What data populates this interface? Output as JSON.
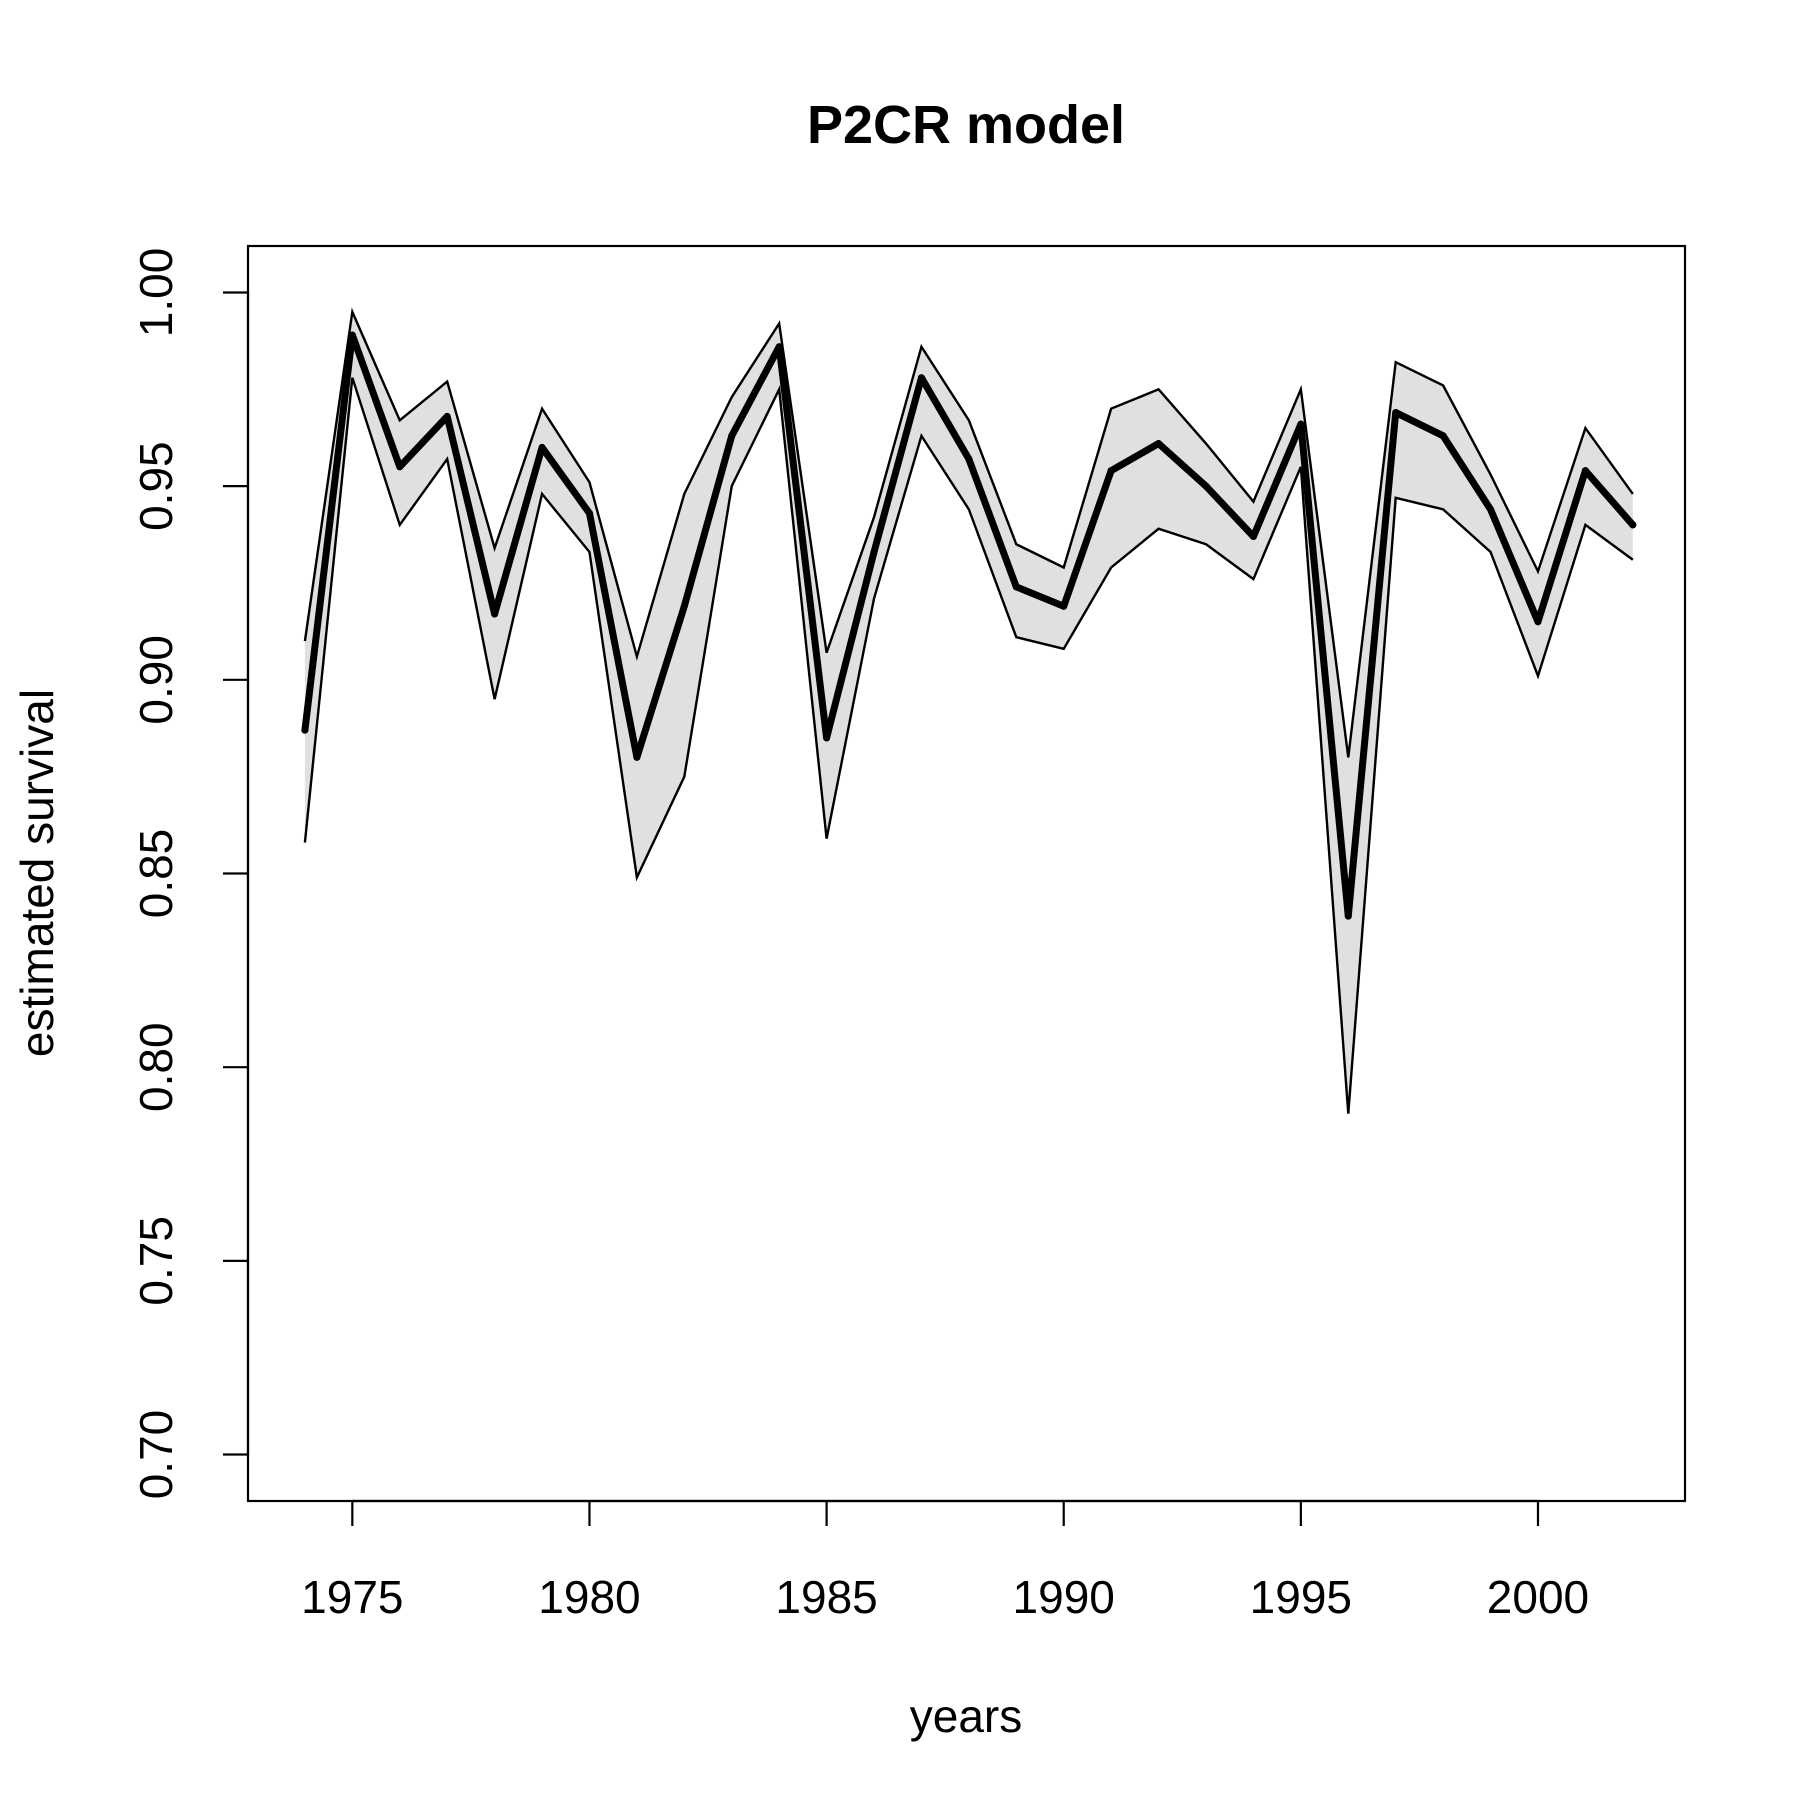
{
  "chart_data": {
    "type": "line",
    "title": "P2CR model",
    "xlabel": "years",
    "ylabel": "estimated survival",
    "xlim": [
      1972.8,
      2003.1
    ],
    "ylim": [
      0.688,
      1.012
    ],
    "x_ticks": [
      1975,
      1980,
      1985,
      1990,
      1995,
      2000
    ],
    "x_tick_labels": [
      "1975",
      "1980",
      "1985",
      "1990",
      "1995",
      "2000"
    ],
    "y_ticks": [
      0.7,
      0.75,
      0.8,
      0.85,
      0.9,
      0.95,
      1.0
    ],
    "y_tick_labels": [
      "0.70",
      "0.75",
      "0.80",
      "0.85",
      "0.90",
      "0.95",
      "1.00"
    ],
    "grid": false,
    "band_color": "#e0e0e0",
    "line_color": "#000000",
    "x": [
      1974,
      1975,
      1976,
      1977,
      1978,
      1979,
      1980,
      1981,
      1982,
      1983,
      1984,
      1985,
      1986,
      1987,
      1988,
      1989,
      1990,
      1991,
      1992,
      1993,
      1994,
      1995,
      1996,
      1997,
      1998,
      1999,
      2000,
      2001,
      2002
    ],
    "series": [
      {
        "role": "estimate",
        "values": [
          0.887,
          0.989,
          0.955,
          0.968,
          0.917,
          0.96,
          0.943,
          0.88,
          0.919,
          0.963,
          0.986,
          0.885,
          0.933,
          0.978,
          0.957,
          0.924,
          0.919,
          0.954,
          0.961,
          0.95,
          0.937,
          0.966,
          0.839,
          0.969,
          0.963,
          0.944,
          0.915,
          0.954,
          0.94
        ]
      },
      {
        "role": "upper",
        "values": [
          0.91,
          0.995,
          0.967,
          0.977,
          0.934,
          0.97,
          0.951,
          0.906,
          0.948,
          0.973,
          0.992,
          0.907,
          0.942,
          0.986,
          0.967,
          0.935,
          0.929,
          0.97,
          0.975,
          0.961,
          0.946,
          0.975,
          0.88,
          0.982,
          0.976,
          0.953,
          0.928,
          0.965,
          0.948
        ]
      },
      {
        "role": "lower",
        "values": [
          0.858,
          0.978,
          0.94,
          0.957,
          0.895,
          0.948,
          0.933,
          0.849,
          0.875,
          0.95,
          0.975,
          0.859,
          0.921,
          0.963,
          0.944,
          0.911,
          0.908,
          0.929,
          0.939,
          0.935,
          0.926,
          0.955,
          0.788,
          0.947,
          0.944,
          0.933,
          0.901,
          0.94,
          0.931
        ]
      }
    ]
  }
}
